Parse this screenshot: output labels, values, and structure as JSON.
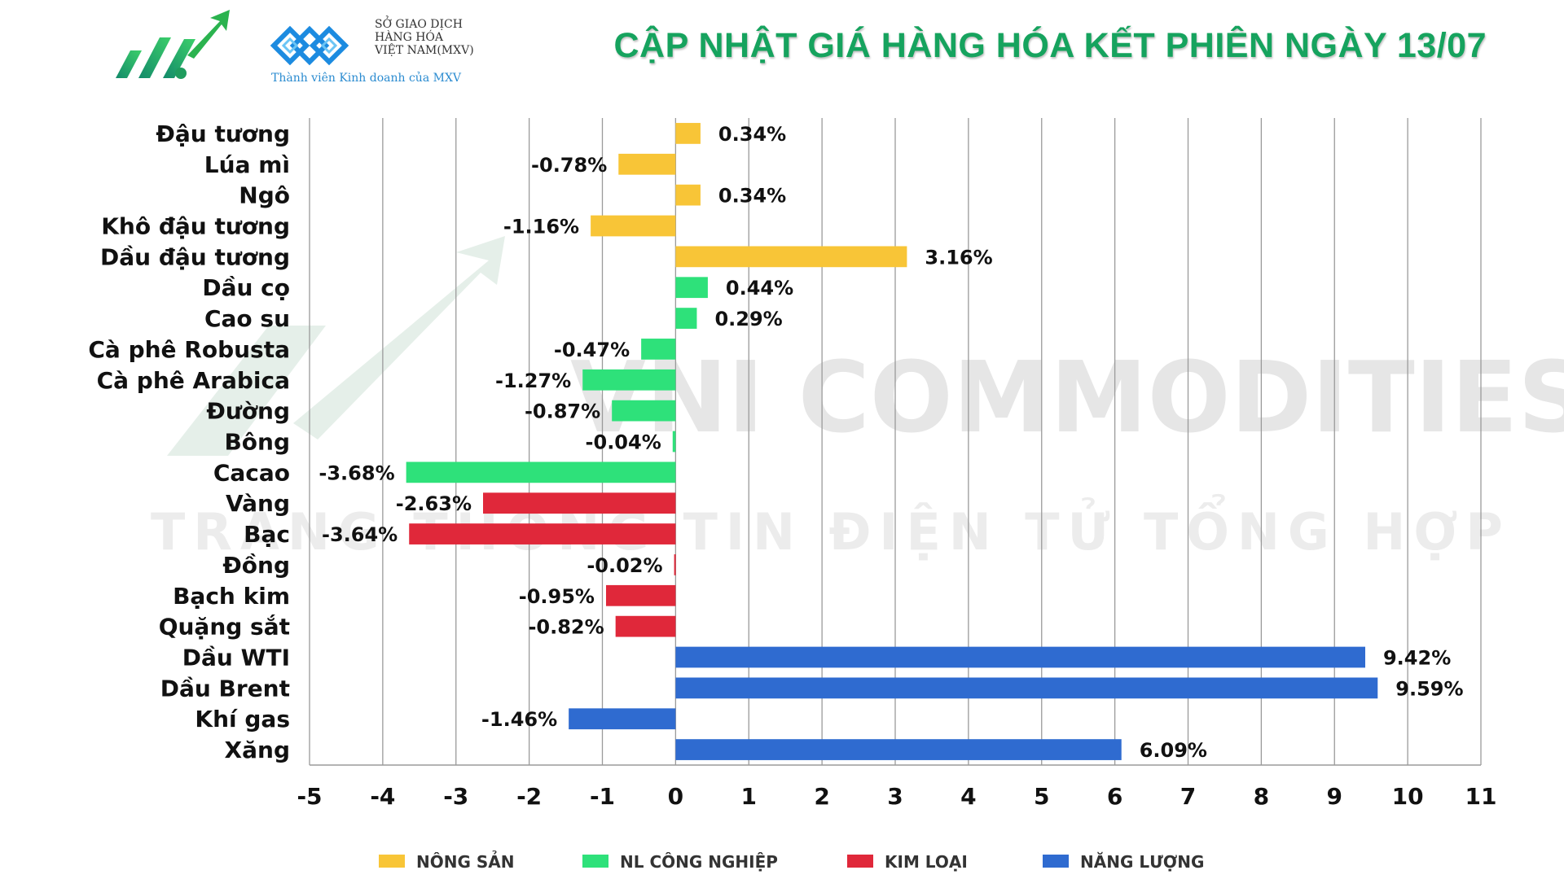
{
  "header": {
    "title": "CẬP NHẬT GIÁ HÀNG HÓA KẾT PHIÊN NGÀY 13/07",
    "mxv_line1": "SỞ GIAO DỊCH",
    "mxv_line2": "HÀNG HÓA",
    "mxv_line3": "VIỆT NAM(MXV)",
    "mxv_tagline": "Thành viên Kinh doanh của MXV"
  },
  "watermark": {
    "line1": "VNI COMMODITIES",
    "line2": "TRANG THÔNG TIN ĐIỆN TỬ TỔNG HỢP"
  },
  "colors": {
    "nong_san": "#f8c537",
    "nl_cong_nghiep": "#2ee17a",
    "kim_loai": "#e0283a",
    "nang_luong": "#2f6bd0",
    "title": "#16a35e"
  },
  "chart_data": {
    "type": "bar",
    "orientation": "horizontal",
    "xlim": [
      -5,
      11
    ],
    "xticks": [
      "-5",
      "-4",
      "-3",
      "-2",
      "-1",
      "0",
      "1",
      "2",
      "3",
      "4",
      "5",
      "6",
      "7",
      "8",
      "9",
      "10",
      "11"
    ],
    "grid": true,
    "legend_position": "bottom",
    "legend": [
      {
        "name": "NÔNG SẢN",
        "group": "nong_san"
      },
      {
        "name": "NL CÔNG NGHIỆP",
        "group": "nl_cong_nghiep"
      },
      {
        "name": "KIM LOẠI",
        "group": "kim_loai"
      },
      {
        "name": "NĂNG LƯỢNG",
        "group": "nang_luong"
      }
    ],
    "items": [
      {
        "name": "Đậu tương",
        "value": 0.34,
        "label": "0.34%",
        "group": "nong_san"
      },
      {
        "name": "Lúa mì",
        "value": -0.78,
        "label": "-0.78%",
        "group": "nong_san"
      },
      {
        "name": "Ngô",
        "value": 0.34,
        "label": "0.34%",
        "group": "nong_san"
      },
      {
        "name": "Khô đậu tương",
        "value": -1.16,
        "label": "-1.16%",
        "group": "nong_san"
      },
      {
        "name": "Dầu đậu tương",
        "value": 3.16,
        "label": "3.16%",
        "group": "nong_san"
      },
      {
        "name": "Dầu cọ",
        "value": 0.44,
        "label": "0.44%",
        "group": "nl_cong_nghiep"
      },
      {
        "name": "Cao su",
        "value": 0.29,
        "label": "0.29%",
        "group": "nl_cong_nghiep"
      },
      {
        "name": "Cà phê Robusta",
        "value": -0.47,
        "label": "-0.47%",
        "group": "nl_cong_nghiep"
      },
      {
        "name": "Cà phê Arabica",
        "value": -1.27,
        "label": "-1.27%",
        "group": "nl_cong_nghiep"
      },
      {
        "name": "Đường",
        "value": -0.87,
        "label": "-0.87%",
        "group": "nl_cong_nghiep"
      },
      {
        "name": "Bông",
        "value": -0.04,
        "label": "-0.04%",
        "group": "nl_cong_nghiep"
      },
      {
        "name": "Cacao",
        "value": -3.68,
        "label": "-3.68%",
        "group": "nl_cong_nghiep"
      },
      {
        "name": "Vàng",
        "value": -2.63,
        "label": "-2.63%",
        "group": "kim_loai"
      },
      {
        "name": "Bạc",
        "value": -3.64,
        "label": "-3.64%",
        "group": "kim_loai"
      },
      {
        "name": "Đồng",
        "value": -0.02,
        "label": "-0.02%",
        "group": "kim_loai"
      },
      {
        "name": "Bạch kim",
        "value": -0.95,
        "label": "-0.95%",
        "group": "kim_loai"
      },
      {
        "name": "Quặng sắt",
        "value": -0.82,
        "label": "-0.82%",
        "group": "kim_loai"
      },
      {
        "name": "Dầu WTI",
        "value": 9.42,
        "label": "9.42%",
        "group": "nang_luong"
      },
      {
        "name": "Dầu Brent",
        "value": 9.59,
        "label": "9.59%",
        "group": "nang_luong"
      },
      {
        "name": "Khí gas",
        "value": -1.46,
        "label": "-1.46%",
        "group": "nang_luong"
      },
      {
        "name": "Xăng",
        "value": 6.09,
        "label": "6.09%",
        "group": "nang_luong"
      }
    ]
  }
}
